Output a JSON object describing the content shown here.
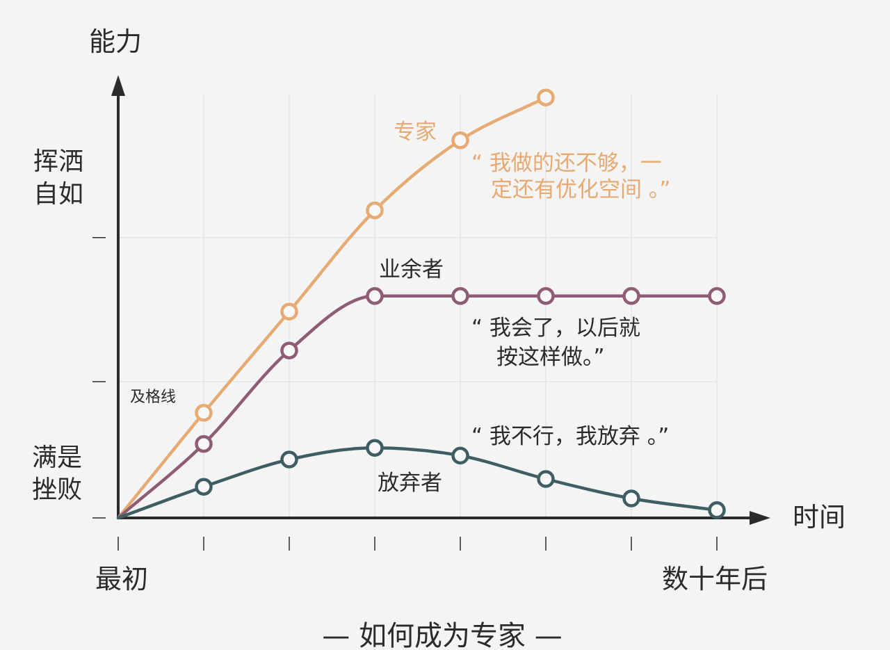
{
  "chart_data": {
    "type": "line",
    "title": "— 如何成为专家 —",
    "ylabel": "能力",
    "xlabel": "时间",
    "x_start_label": "最初",
    "x_end_label": "数十年后",
    "x": [
      0,
      1,
      2,
      3,
      4,
      5,
      6,
      7
    ],
    "ylim": [
      0,
      1
    ],
    "y_tick_labels": [
      {
        "text": "满是挫败",
        "lines": [
          "满是",
          "挫败"
        ]
      },
      {
        "text": "及格线",
        "lines": [
          "及格线"
        ]
      },
      {
        "text": "挥洒自如",
        "lines": [
          "挥洒",
          "自如"
        ]
      }
    ],
    "reference_levels": [
      0.35,
      0.72
    ],
    "series": [
      {
        "name": "专家",
        "color": "#e6aa72",
        "x": [
          1,
          2,
          3,
          4,
          5
        ],
        "values": [
          0.27,
          0.53,
          0.79,
          0.97,
          1.08
        ],
        "quote": [
          "“ 我做的还不够，一",
          "定还有优化空间 。”"
        ]
      },
      {
        "name": "业余者",
        "color": "#8e5c73",
        "x": [
          1,
          2,
          3,
          4,
          5,
          6,
          7
        ],
        "values": [
          0.19,
          0.43,
          0.57,
          0.57,
          0.57,
          0.57,
          0.57
        ],
        "quote": [
          "“ 我会了，以后就",
          "按这样做。”"
        ]
      },
      {
        "name": "放弃者",
        "color": "#3f5e63",
        "x": [
          1,
          2,
          3,
          4,
          5,
          6,
          7
        ],
        "values": [
          0.08,
          0.15,
          0.18,
          0.16,
          0.1,
          0.05,
          0.02
        ],
        "quote": [
          "“ 我不行，我放弃 。”"
        ]
      }
    ]
  }
}
